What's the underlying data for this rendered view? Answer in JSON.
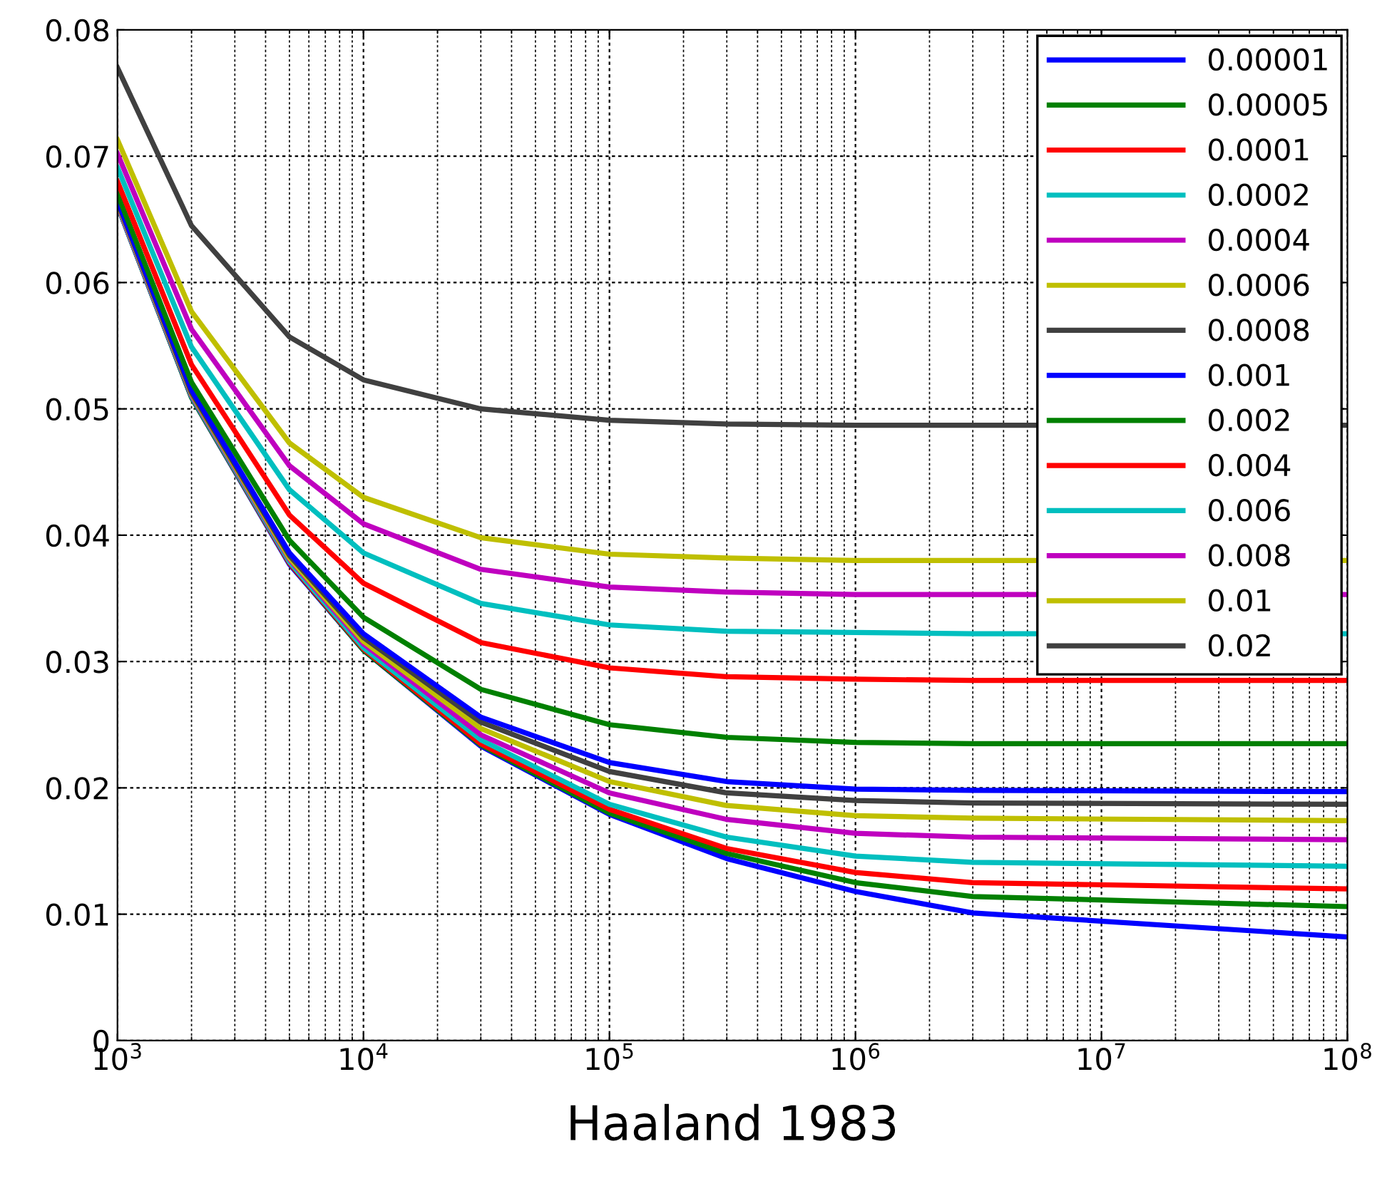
{
  "chart_data": {
    "type": "line",
    "xlabel": "Haaland 1983",
    "log": "x",
    "grid": true,
    "legend": "top right",
    "marker": "none",
    "line_style": "solid",
    "x": [
      1000,
      2000,
      5000,
      10000,
      30000,
      100000,
      300000,
      1000000,
      3000000,
      100000000
    ],
    "xlim": [
      1000,
      100000000
    ],
    "xticks": [
      {
        "value": 1000,
        "label": "10$^{3}$"
      },
      {
        "value": 10000,
        "label": "10$^{4}$"
      },
      {
        "value": 100000,
        "label": "10$^{5}$"
      },
      {
        "value": 1000000,
        "label": "10$^{6}$"
      },
      {
        "value": 10000000,
        "label": "10$^{7}$"
      },
      {
        "value": 100000000,
        "label": "10$^{8}$"
      }
    ],
    "ylim": [
      0,
      0.08
    ],
    "yticks": [
      0,
      0.01,
      0.02,
      0.03,
      0.04,
      0.05,
      0.06,
      0.07,
      0.08
    ],
    "series": [
      {
        "name": "0.00001",
        "color": "#0000ff",
        "values": [
          0.0661,
          0.0509,
          0.0377,
          0.0309,
          0.0233,
          0.0179,
          0.0144,
          0.0118,
          0.0101,
          0.0082
        ]
      },
      {
        "name": "0.00005",
        "color": "#008000",
        "values": [
          0.0661,
          0.0509,
          0.0378,
          0.0309,
          0.0234,
          0.018,
          0.0148,
          0.0125,
          0.0114,
          0.0106
        ]
      },
      {
        "name": "0.0001",
        "color": "#ff0000",
        "values": [
          0.0661,
          0.051,
          0.0378,
          0.031,
          0.0235,
          0.0183,
          0.0152,
          0.0133,
          0.0125,
          0.012
        ]
      },
      {
        "name": "0.0002",
        "color": "#00bfbf",
        "values": [
          0.0661,
          0.051,
          0.0379,
          0.0311,
          0.0238,
          0.0187,
          0.0161,
          0.0146,
          0.0141,
          0.0138
        ]
      },
      {
        "name": "0.0004",
        "color": "#bf00bf",
        "values": [
          0.0662,
          0.0511,
          0.0381,
          0.0314,
          0.0242,
          0.0196,
          0.0175,
          0.0164,
          0.0161,
          0.0159
        ]
      },
      {
        "name": "0.0006",
        "color": "#bfbf00",
        "values": [
          0.0663,
          0.0512,
          0.0382,
          0.0316,
          0.0247,
          0.0205,
          0.0186,
          0.0178,
          0.0176,
          0.0174
        ]
      },
      {
        "name": "0.0008",
        "color": "#404040",
        "values": [
          0.0664,
          0.0513,
          0.0384,
          0.0319,
          0.0252,
          0.0213,
          0.0196,
          0.019,
          0.0188,
          0.0187
        ]
      },
      {
        "name": "0.001",
        "color": "#0000ff",
        "values": [
          0.0665,
          0.0515,
          0.0386,
          0.0322,
          0.0256,
          0.022,
          0.0205,
          0.0199,
          0.0198,
          0.0197
        ]
      },
      {
        "name": "0.002",
        "color": "#008000",
        "values": [
          0.067,
          0.0521,
          0.0396,
          0.0335,
          0.0278,
          0.025,
          0.024,
          0.0236,
          0.0235,
          0.0235
        ]
      },
      {
        "name": "0.004",
        "color": "#ff0000",
        "values": [
          0.068,
          0.0535,
          0.0416,
          0.0362,
          0.0315,
          0.0295,
          0.0288,
          0.0286,
          0.0285,
          0.0285
        ]
      },
      {
        "name": "0.006",
        "color": "#00bfbf",
        "values": [
          0.0691,
          0.0549,
          0.0436,
          0.0386,
          0.0346,
          0.0329,
          0.0324,
          0.0323,
          0.0322,
          0.0322
        ]
      },
      {
        "name": "0.008",
        "color": "#bf00bf",
        "values": [
          0.0702,
          0.0563,
          0.0455,
          0.0409,
          0.0373,
          0.0359,
          0.0355,
          0.0353,
          0.0353,
          0.0353
        ]
      },
      {
        "name": "0.01",
        "color": "#bfbf00",
        "values": [
          0.0713,
          0.0577,
          0.0473,
          0.043,
          0.0398,
          0.0385,
          0.0382,
          0.038,
          0.038,
          0.038
        ]
      },
      {
        "name": "0.02",
        "color": "#404040",
        "values": [
          0.077,
          0.0645,
          0.0557,
          0.0523,
          0.05,
          0.0491,
          0.0488,
          0.0487,
          0.0487,
          0.0487
        ]
      }
    ]
  }
}
